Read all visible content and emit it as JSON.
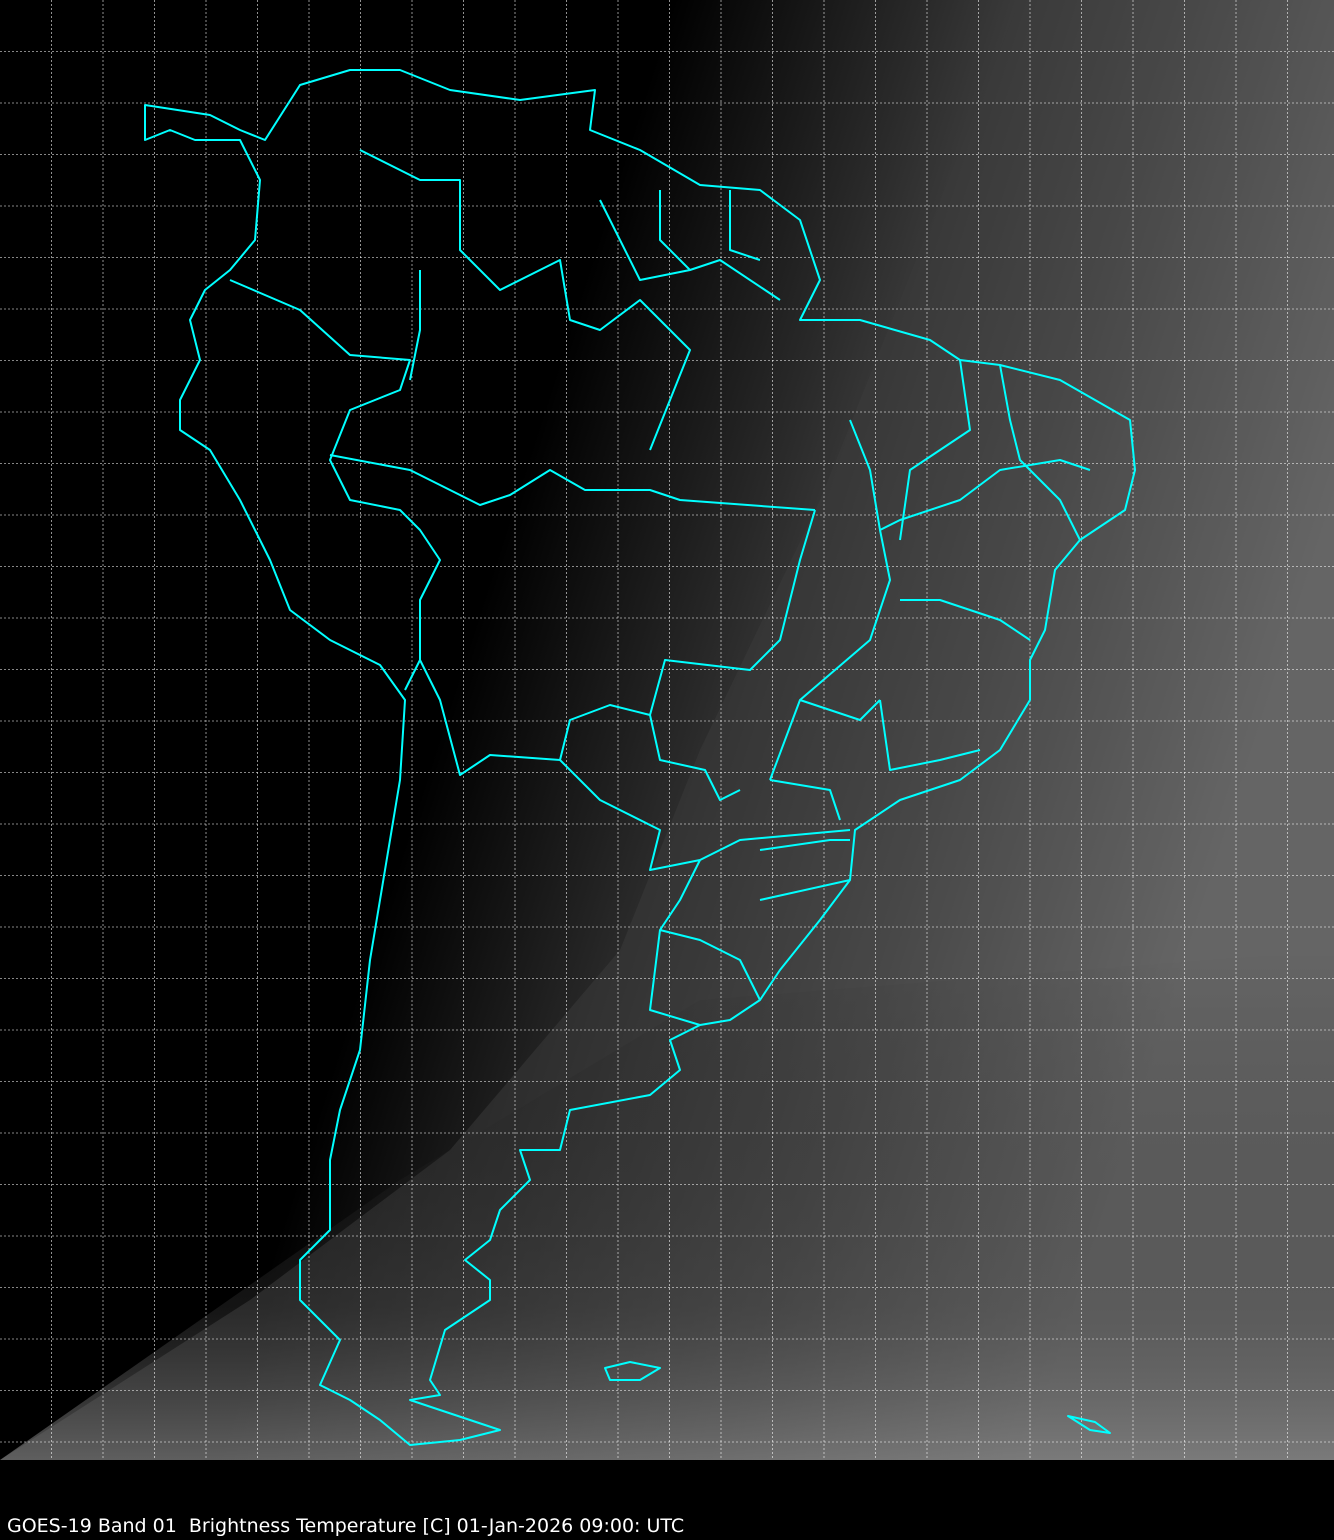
{
  "caption": "GOES-19 Band 01  Brightness Temperature [C] 01-Jan-2026 09:00: UTC",
  "map": {
    "satellite": "GOES-19",
    "band": "Band 01",
    "product": "Brightness Temperature [C]",
    "datetime": "01-Jan-2026 09:00: UTC",
    "region": "South America",
    "coastline_color": "#00FFFF",
    "grid_color": "#FFFFFF",
    "grid_style": "dashed",
    "background_night_color": "#000000"
  }
}
